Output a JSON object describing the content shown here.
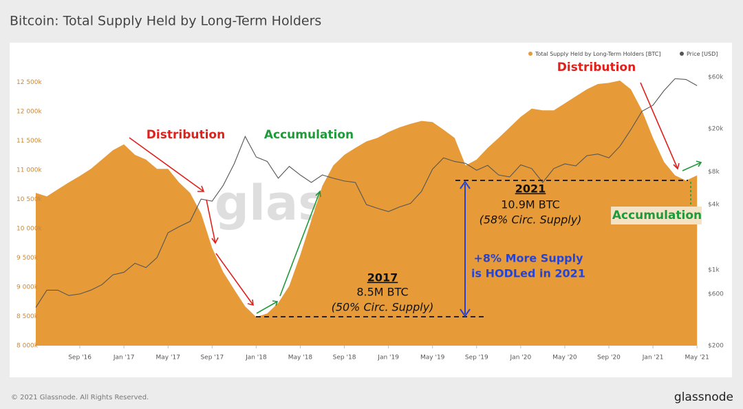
{
  "chart_data": {
    "type": "area",
    "title": "Bitcoin: Total Supply Held by Long-Term Holders",
    "watermark": "glassnode",
    "x": [
      "2016-05",
      "2016-06",
      "2016-07",
      "2016-08",
      "2016-09",
      "2016-10",
      "2016-11",
      "2016-12",
      "2017-01",
      "2017-02",
      "2017-03",
      "2017-04",
      "2017-05",
      "2017-06",
      "2017-07",
      "2017-08",
      "2017-09",
      "2017-10",
      "2017-11",
      "2017-12",
      "2018-01",
      "2018-02",
      "2018-03",
      "2018-04",
      "2018-05",
      "2018-06",
      "2018-07",
      "2018-08",
      "2018-09",
      "2018-10",
      "2018-11",
      "2018-12",
      "2019-01",
      "2019-02",
      "2019-03",
      "2019-04",
      "2019-05",
      "2019-06",
      "2019-07",
      "2019-08",
      "2019-09",
      "2019-10",
      "2019-11",
      "2019-12",
      "2020-01",
      "2020-02",
      "2020-03",
      "2020-04",
      "2020-05",
      "2020-06",
      "2020-07",
      "2020-08",
      "2020-09",
      "2020-10",
      "2020-11",
      "2020-12",
      "2021-01",
      "2021-02",
      "2021-03",
      "2021-04",
      "2021-05"
    ],
    "series": [
      {
        "name": "Total Supply Held by Long-Term Holders [BTC]",
        "color": "#e69b38",
        "values": [
          10610,
          10550,
          10670,
          10790,
          10900,
          11020,
          11180,
          11340,
          11440,
          11260,
          11180,
          11020,
          11020,
          10790,
          10610,
          10260,
          9670,
          9260,
          8960,
          8670,
          8490,
          8550,
          8730,
          9020,
          9550,
          10140,
          10730,
          11080,
          11260,
          11380,
          11490,
          11550,
          11650,
          11730,
          11790,
          11840,
          11820,
          11690,
          11550,
          11080,
          11180,
          11380,
          11550,
          11730,
          11910,
          12050,
          12020,
          12020,
          12140,
          12260,
          12380,
          12470,
          12490,
          12530,
          12380,
          12020,
          11550,
          11140,
          10910,
          10820,
          10910
        ]
      },
      {
        "name": "Price [USD]",
        "color": "#555555",
        "axis": "y2",
        "values": [
          450,
          650,
          650,
          580,
          600,
          650,
          730,
          900,
          950,
          1150,
          1050,
          1300,
          2200,
          2500,
          2800,
          4500,
          4300,
          6000,
          9500,
          17000,
          11000,
          10000,
          7000,
          9000,
          7500,
          6400,
          7500,
          7000,
          6600,
          6400,
          4000,
          3700,
          3450,
          3800,
          4100,
          5300,
          8500,
          10800,
          10000,
          9600,
          8300,
          9200,
          7500,
          7200,
          9300,
          8600,
          6400,
          8600,
          9500,
          9100,
          11300,
          11700,
          10800,
          13800,
          19700,
          29000,
          33000,
          45000,
          58000,
          57000,
          50000
        ]
      }
    ],
    "xticks": [
      {
        "value": "2016-09",
        "label": "Sep '16"
      },
      {
        "value": "2017-01",
        "label": "Jan '17"
      },
      {
        "value": "2017-05",
        "label": "May '17"
      },
      {
        "value": "2017-09",
        "label": "Sep '17"
      },
      {
        "value": "2018-01",
        "label": "Jan '18"
      },
      {
        "value": "2018-05",
        "label": "May '18"
      },
      {
        "value": "2018-09",
        "label": "Sep '18"
      },
      {
        "value": "2019-01",
        "label": "Jan '19"
      },
      {
        "value": "2019-05",
        "label": "May '19"
      },
      {
        "value": "2019-09",
        "label": "Sep '19"
      },
      {
        "value": "2020-01",
        "label": "Jan '20"
      },
      {
        "value": "2020-05",
        "label": "May '20"
      },
      {
        "value": "2020-09",
        "label": "Sep '20"
      },
      {
        "value": "2021-01",
        "label": "Jan '21"
      },
      {
        "value": "2021-05",
        "label": "May '21"
      }
    ],
    "ylim": [
      8000,
      12800
    ],
    "yticks": [
      {
        "value": 8000,
        "label": "8 000k"
      },
      {
        "value": 8500,
        "label": "8 500k"
      },
      {
        "value": 9000,
        "label": "9 000k"
      },
      {
        "value": 9500,
        "label": "9 500k"
      },
      {
        "value": 10000,
        "label": "10 000k"
      },
      {
        "value": 10500,
        "label": "10 500k"
      },
      {
        "value": 11000,
        "label": "11 000k"
      },
      {
        "value": 11500,
        "label": "11 500k"
      },
      {
        "value": 12000,
        "label": "12 000k"
      },
      {
        "value": 12500,
        "label": "12 500k"
      }
    ],
    "y2lim": [
      200,
      78000
    ],
    "y2scale": "log",
    "y2ticks": [
      {
        "value": 200,
        "label": "$200"
      },
      {
        "value": 600,
        "label": "$600"
      },
      {
        "value": 1000,
        "label": "$1k"
      },
      {
        "value": 4000,
        "label": "$4k"
      },
      {
        "value": 8000,
        "label": "$8k"
      },
      {
        "value": 20000,
        "label": "$20k"
      },
      {
        "value": 60000,
        "label": "$60k"
      }
    ],
    "annotations": [
      "Distribution",
      "Accumulation",
      "Distribution",
      "Accumulation",
      "2017",
      "8.5M BTC",
      "(50% Circ. Supply)",
      "2021",
      "10.9M BTC",
      "(58% Circ. Supply)",
      "+8% More Supply",
      "is HODLed in 2021"
    ]
  },
  "footer": {
    "copyright": "© 2021 Glassnode. All Rights Reserved.",
    "logo": "glassnode"
  }
}
